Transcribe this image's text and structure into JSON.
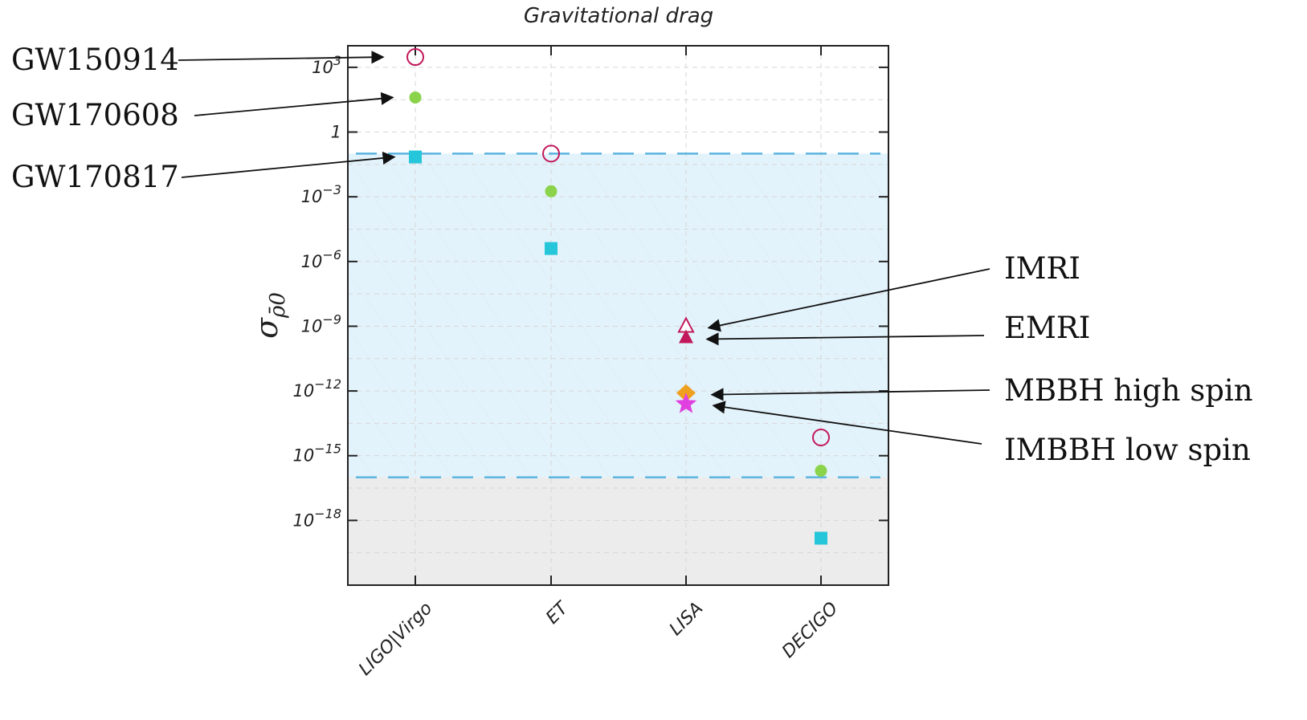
{
  "chart_data": {
    "type": "scatter",
    "title": "Gravitational drag",
    "ylabel": "σ_ρ̄0",
    "yscale": "log",
    "ylim": [
      1e-21,
      10000.0
    ],
    "grid": true,
    "categories": [
      "LIGO|Virgo",
      "ET",
      "LISA",
      "DECIGO"
    ],
    "yticks": [
      {
        "value": 1000,
        "label": "10^3"
      },
      {
        "value": 1,
        "label": "1"
      },
      {
        "value": 0.001,
        "label": "10^-3"
      },
      {
        "value": 1e-06,
        "label": "10^-6"
      },
      {
        "value": 1e-09,
        "label": "10^-9"
      },
      {
        "value": 1e-12,
        "label": "10^-12"
      },
      {
        "value": 1e-15,
        "label": "10^-15"
      },
      {
        "value": 1e-18,
        "label": "10^-18"
      }
    ],
    "threshold_lines": [
      0.1,
      1e-16
    ],
    "bands": [
      {
        "from": 1e-16,
        "to": 0.1,
        "color": "#e3f3fb"
      },
      {
        "from": 1e-21,
        "to": 1e-16,
        "color": "#ececec"
      }
    ],
    "points": [
      {
        "category": "LIGO|Virgo",
        "y": 3000,
        "marker": "circle-open",
        "color": "#c2185b"
      },
      {
        "category": "LIGO|Virgo",
        "y": 40,
        "marker": "circle",
        "color": "#8bd34a"
      },
      {
        "category": "LIGO|Virgo",
        "y": 0.07,
        "marker": "square",
        "color": "#26c6da"
      },
      {
        "category": "ET",
        "y": 0.1,
        "marker": "circle-open",
        "color": "#c2185b"
      },
      {
        "category": "ET",
        "y": 0.0018,
        "marker": "circle",
        "color": "#8bd34a"
      },
      {
        "category": "ET",
        "y": 4e-06,
        "marker": "square",
        "color": "#26c6da"
      },
      {
        "category": "LISA",
        "y": 1e-09,
        "marker": "triangle-open",
        "color": "#c2185b"
      },
      {
        "category": "LISA",
        "y": 3e-10,
        "marker": "triangle",
        "color": "#c2185b"
      },
      {
        "category": "LISA",
        "y": 8e-13,
        "marker": "diamond",
        "color": "#f0a020"
      },
      {
        "category": "LISA",
        "y": 2.5e-13,
        "marker": "star",
        "color": "#e040e0"
      },
      {
        "category": "DECIGO",
        "y": 7e-15,
        "marker": "circle-open",
        "color": "#c2185b"
      },
      {
        "category": "DECIGO",
        "y": 2e-16,
        "marker": "circle",
        "color": "#8bd34a"
      },
      {
        "category": "DECIGO",
        "y": 1.5e-19,
        "marker": "square",
        "color": "#26c6da"
      }
    ]
  },
  "annotations": {
    "left": [
      {
        "text": "GW150914",
        "category": "LIGO|Virgo",
        "y": 3000
      },
      {
        "text": "GW170608",
        "category": "LIGO|Virgo",
        "y": 40
      },
      {
        "text": "GW170817",
        "category": "LIGO|Virgo",
        "y": 0.07
      }
    ],
    "right": [
      {
        "text": "IMRI",
        "category": "LISA",
        "y": 1e-09
      },
      {
        "text": "EMRI",
        "category": "LISA",
        "y": 3e-10
      },
      {
        "text": "MBBH high spin",
        "category": "LISA",
        "y": 8e-13
      },
      {
        "text": "IMBBH low spin",
        "category": "LISA",
        "y": 2.5e-13
      }
    ]
  }
}
